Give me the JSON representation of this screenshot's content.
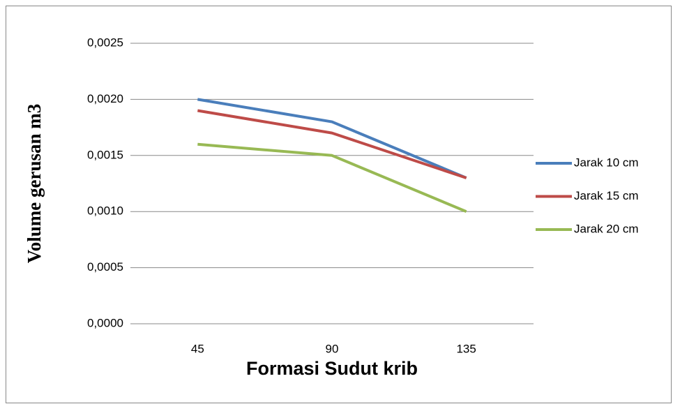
{
  "chart_data": {
    "type": "line",
    "x_label": "Formasi Sudut krib",
    "y_label": "Volume gerusan m3",
    "categories": [
      "45",
      "90",
      "135"
    ],
    "series": [
      {
        "name": "Jarak 10 cm",
        "color": "#4a7ebb",
        "values": [
          0.002,
          0.0018,
          0.0013
        ]
      },
      {
        "name": "Jarak 15 cm",
        "color": "#be4b48",
        "values": [
          0.0019,
          0.0017,
          0.0013
        ]
      },
      {
        "name": "Jarak 20 cm",
        "color": "#98b954",
        "values": [
          0.0016,
          0.0015,
          0.001
        ]
      }
    ],
    "ylim": [
      0,
      0.0025
    ],
    "yticks": [
      {
        "value": 0,
        "label": "0,0000"
      },
      {
        "value": 0.0005,
        "label": "0,0005"
      },
      {
        "value": 0.001,
        "label": "0,0010"
      },
      {
        "value": 0.0015,
        "label": "0,0015"
      },
      {
        "value": 0.002,
        "label": "0,0020"
      },
      {
        "value": 0.0025,
        "label": "0,0025"
      }
    ],
    "grid": true,
    "legend": "right"
  }
}
